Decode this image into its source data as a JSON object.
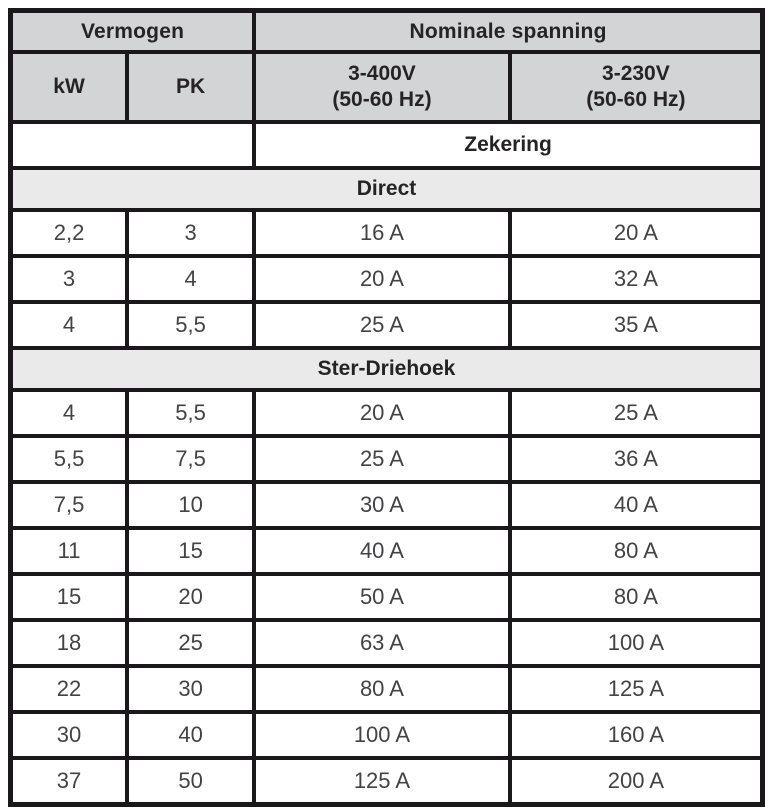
{
  "table": {
    "header": {
      "group1": "Vermogen",
      "group2": "Nominale spanning",
      "col_kw": "kW",
      "col_pk": "PK",
      "col_400": [
        "3-400V",
        "(50-60 Hz)"
      ],
      "col_230": [
        "3-230V",
        "(50-60 Hz)"
      ],
      "subheader": "Zekering"
    },
    "sections": [
      {
        "title": "Direct",
        "rows": [
          [
            "2,2",
            "3",
            "16 A",
            "20 A"
          ],
          [
            "3",
            "4",
            "20 A",
            "32 A"
          ],
          [
            "4",
            "5,5",
            "25 A",
            "35 A"
          ]
        ]
      },
      {
        "title": "Ster-Driehoek",
        "rows": [
          [
            "4",
            "5,5",
            "20 A",
            "25 A"
          ],
          [
            "5,5",
            "7,5",
            "25 A",
            "36 A"
          ],
          [
            "7,5",
            "10",
            "30 A",
            "40 A"
          ],
          [
            "11",
            "15",
            "40 A",
            "80 A"
          ],
          [
            "15",
            "20",
            "50 A",
            "80 A"
          ],
          [
            "18",
            "25",
            "63 A",
            "100 A"
          ],
          [
            "22",
            "30",
            "80 A",
            "125 A"
          ],
          [
            "30",
            "40",
            "100 A",
            "160 A"
          ],
          [
            "37",
            "50",
            "125 A",
            "200 A"
          ]
        ]
      }
    ],
    "colors": {
      "header_bg": "#d3d4d5",
      "section_bg": "#eaeaea",
      "border": "#1a181a",
      "header_text": "#262324",
      "data_text": "#434244"
    }
  }
}
